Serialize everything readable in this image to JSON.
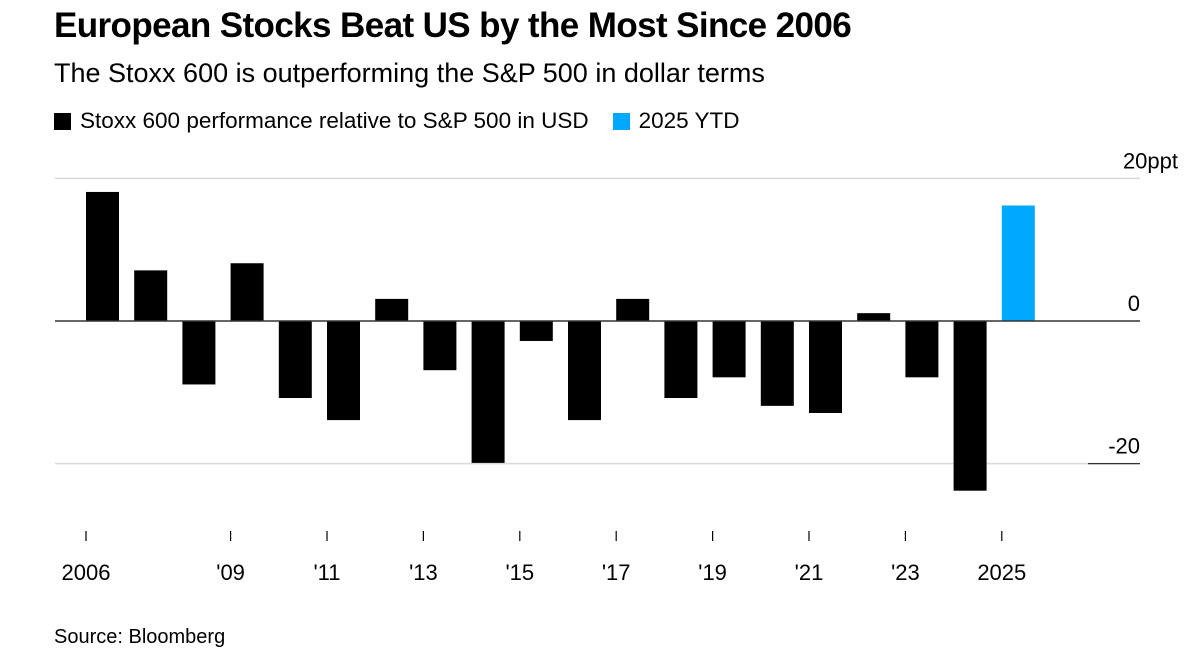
{
  "header": {
    "title": "European Stocks Beat US by the Most Since 2006",
    "subtitle": "The Stoxx 600 is outperforming the S&P 500 in dollar terms"
  },
  "footer": {
    "source": "Source: Bloomberg"
  },
  "colors": {
    "primary": "#000000",
    "highlight": "#00a8ff",
    "gridline": "#d9d9d9",
    "zeroline": "#333333"
  },
  "chart_data": {
    "type": "bar",
    "title": "European Stocks Beat US by the Most Since 2006",
    "subtitle": "The Stoxx 600 is outperforming the S&P 500 in dollar terms",
    "xlabel": "",
    "ylabel": "",
    "y_unit": "ppt",
    "ylim": [
      -25,
      20
    ],
    "grid": true,
    "legend_position": "top-left",
    "legend": [
      {
        "label": "Stoxx 600 performance relative to S&P 500 in USD",
        "color": "#000000"
      },
      {
        "label": "2025 YTD",
        "color": "#00a8ff"
      }
    ],
    "categories": [
      "2006",
      "2007",
      "2008",
      "2009",
      "2010",
      "2011",
      "2012",
      "2013",
      "2014",
      "2015",
      "2016",
      "2017",
      "2018",
      "2019",
      "2020",
      "2021",
      "2022",
      "2023",
      "2024",
      "2025"
    ],
    "series": [
      {
        "name": "Stoxx 600 performance relative to S&P 500 in USD",
        "values": [
          18.1,
          7.1,
          -8.9,
          8.1,
          -10.8,
          -13.9,
          3.1,
          -6.9,
          -19.9,
          -2.8,
          -13.9,
          3.1,
          -10.8,
          -7.9,
          -11.9,
          -12.9,
          1.1,
          -7.9,
          -23.8,
          null
        ]
      },
      {
        "name": "2025 YTD",
        "values": [
          null,
          null,
          null,
          null,
          null,
          null,
          null,
          null,
          null,
          null,
          null,
          null,
          null,
          null,
          null,
          null,
          null,
          null,
          null,
          16.2
        ]
      }
    ],
    "y_ticks": [
      {
        "value": 20,
        "label": "20ppt"
      },
      {
        "value": 0,
        "label": "0"
      },
      {
        "value": -20,
        "label": "-20"
      }
    ],
    "x_ticks": [
      {
        "category": "2006",
        "label": "2006"
      },
      {
        "category": "2009",
        "label": "'09"
      },
      {
        "category": "2011",
        "label": "'11"
      },
      {
        "category": "2013",
        "label": "'13"
      },
      {
        "category": "2015",
        "label": "'15"
      },
      {
        "category": "2017",
        "label": "'17"
      },
      {
        "category": "2019",
        "label": "'19"
      },
      {
        "category": "2021",
        "label": "'21"
      },
      {
        "category": "2023",
        "label": "'23"
      },
      {
        "category": "2025",
        "label": "2025"
      }
    ]
  }
}
